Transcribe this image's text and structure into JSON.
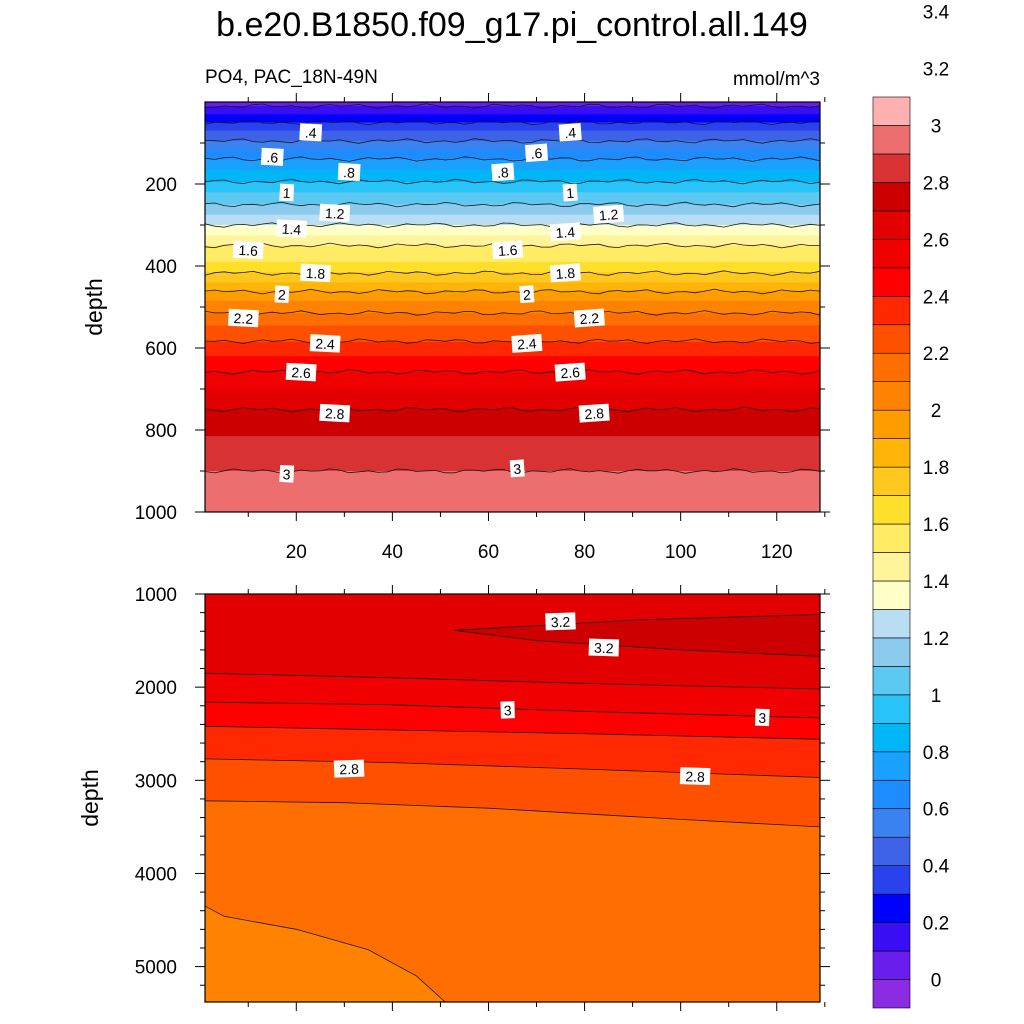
{
  "chart_data": [
    {
      "type": "contour",
      "panel": "upper",
      "title": "b.e20.B1850.f09_g17.pi_control.all.149",
      "left_label": "PO4, PAC_18N-49N",
      "right_label": "mmol/m^3",
      "xlabel": "",
      "ylabel": "depth",
      "xlim": [
        1,
        129
      ],
      "ylim": [
        1000,
        0
      ],
      "x_ticks": [
        20,
        40,
        60,
        80,
        100,
        120
      ],
      "x_tick_labels": [
        "20",
        "40",
        "60",
        "80",
        "100",
        "120"
      ],
      "y_ticks": [
        200,
        400,
        600,
        800,
        1000
      ],
      "y_tick_labels": [
        "200",
        "400",
        "600",
        "800",
        "1000"
      ],
      "contour_levels": [
        0.2,
        0.4,
        0.6,
        0.8,
        1.0,
        1.2,
        1.4,
        1.6,
        1.8,
        2.0,
        2.2,
        2.4,
        2.6,
        2.8,
        3.0
      ],
      "profile": {
        "depth": [
          0,
          10,
          30,
          50,
          70,
          100,
          150,
          200,
          250,
          300,
          350,
          400,
          450,
          500,
          550,
          600,
          650,
          700,
          750,
          800,
          850,
          900,
          950,
          1000
        ],
        "po4": [
          0.15,
          0.2,
          0.3,
          0.4,
          0.5,
          0.62,
          0.85,
          1.02,
          1.2,
          1.4,
          1.6,
          1.72,
          1.95,
          2.15,
          2.32,
          2.44,
          2.58,
          2.7,
          2.8,
          2.88,
          2.95,
          3.0,
          3.05,
          3.08
        ]
      },
      "contour_labels": [
        {
          "text": ".4",
          "x": 23,
          "y": 75
        },
        {
          "text": ".4",
          "x": 77,
          "y": 75
        },
        {
          "text": ".6",
          "x": 15,
          "y": 135
        },
        {
          "text": ".6",
          "x": 70,
          "y": 125
        },
        {
          "text": ".8",
          "x": 31,
          "y": 172
        },
        {
          "text": ".8",
          "x": 63,
          "y": 172
        },
        {
          "text": "1",
          "x": 18,
          "y": 222
        },
        {
          "text": "1",
          "x": 77,
          "y": 222
        },
        {
          "text": "1.2",
          "x": 28,
          "y": 272
        },
        {
          "text": "1.2",
          "x": 85,
          "y": 275
        },
        {
          "text": "1.4",
          "x": 19,
          "y": 310
        },
        {
          "text": "1.4",
          "x": 76,
          "y": 318
        },
        {
          "text": "1.6",
          "x": 10,
          "y": 362
        },
        {
          "text": "1.6",
          "x": 64,
          "y": 362
        },
        {
          "text": "1.8",
          "x": 24,
          "y": 418
        },
        {
          "text": "1.8",
          "x": 76,
          "y": 418
        },
        {
          "text": "2",
          "x": 17,
          "y": 470
        },
        {
          "text": "2",
          "x": 68,
          "y": 470
        },
        {
          "text": "2.2",
          "x": 9,
          "y": 528
        },
        {
          "text": "2.2",
          "x": 81,
          "y": 528
        },
        {
          "text": "2.4",
          "x": 26,
          "y": 590
        },
        {
          "text": "2.4",
          "x": 68,
          "y": 590
        },
        {
          "text": "2.6",
          "x": 21,
          "y": 660
        },
        {
          "text": "2.6",
          "x": 77,
          "y": 660
        },
        {
          "text": "2.8",
          "x": 28,
          "y": 760
        },
        {
          "text": "2.8",
          "x": 82,
          "y": 760
        },
        {
          "text": "3",
          "x": 18,
          "y": 908
        },
        {
          "text": "3",
          "x": 66,
          "y": 895
        }
      ]
    },
    {
      "type": "contour",
      "panel": "lower",
      "xlabel": "",
      "ylabel": "depth",
      "xlim": [
        1,
        129
      ],
      "ylim": [
        5380,
        1000
      ],
      "y_ticks": [
        1000,
        2000,
        3000,
        4000,
        5000
      ],
      "y_tick_labels": [
        "1000",
        "2000",
        "3000",
        "4000",
        "5000"
      ],
      "contour_levels": [
        2.4,
        2.6,
        2.8,
        3.0,
        3.2
      ],
      "contour_labels": [
        {
          "text": "3.2",
          "x": 75,
          "y": 1300
        },
        {
          "text": "3.2",
          "x": 84,
          "y": 1580
        },
        {
          "text": "3",
          "x": 64,
          "y": 2250
        },
        {
          "text": "3",
          "x": 117,
          "y": 2330
        },
        {
          "text": "2.8",
          "x": 31,
          "y": 2880
        },
        {
          "text": "2.8",
          "x": 103,
          "y": 2960
        }
      ]
    },
    {
      "type": "colorbar",
      "levels": [
        0,
        0.2,
        0.4,
        0.6,
        0.8,
        1.0,
        1.2,
        1.4,
        1.6,
        1.8,
        2.0,
        2.2,
        2.4,
        2.6,
        2.8,
        3.0,
        3.2,
        3.4
      ],
      "labels": [
        "0",
        "0.2",
        "0.4",
        "0.6",
        "0.8",
        "1",
        "1.2",
        "1.4",
        "1.6",
        "1.8",
        "2",
        "2.2",
        "2.4",
        "2.6",
        "2.8",
        "3",
        "3.2",
        "3.4"
      ],
      "colors": [
        "#8b2be2",
        "#6a1eee",
        "#3a0ef5",
        "#0000ff",
        "#2a42ee",
        "#3f63e8",
        "#3a82ef",
        "#1e8cff",
        "#1aa0ff",
        "#00b6f6",
        "#28c4f7",
        "#5cc9f2",
        "#8ccbed",
        "#b9def4",
        "#ffffc8",
        "#fff49a",
        "#ffeb64",
        "#ffdf2a",
        "#ffc81e",
        "#ffb40a",
        "#ff9c00",
        "#ff8200",
        "#ff6e00",
        "#ff5000",
        "#ff2800",
        "#ff0000",
        "#f00000",
        "#e20000",
        "#cc0000",
        "#d83232",
        "#ec6e6e",
        "#ffb0b0"
      ]
    }
  ]
}
